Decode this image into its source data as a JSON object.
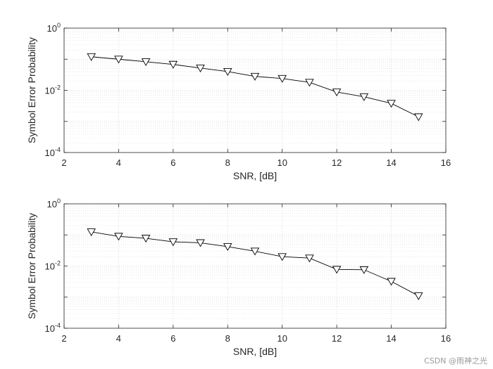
{
  "chart_data": [
    {
      "type": "line",
      "title": "",
      "xlabel": "SNR, [dB]",
      "ylabel": "Symbol Error Probability",
      "xlim": [
        2,
        16
      ],
      "ylim": [
        0.0001,
        1
      ],
      "yscale": "log",
      "grid": true,
      "marker": "triangle-down",
      "xticks": [
        "2",
        "4",
        "6",
        "8",
        "10",
        "12",
        "14",
        "16"
      ],
      "yticks": [
        {
          "base": "10",
          "exp": "0"
        },
        {
          "base": "10",
          "exp": "-2"
        },
        {
          "base": "10",
          "exp": "-4"
        }
      ],
      "x": [
        3,
        4,
        5,
        6,
        7,
        8,
        9,
        10,
        11,
        12,
        13,
        14,
        15
      ],
      "y": [
        0.12,
        0.1,
        0.083,
        0.068,
        0.052,
        0.04,
        0.028,
        0.024,
        0.018,
        0.0088,
        0.0062,
        0.0038,
        0.0014
      ]
    },
    {
      "type": "line",
      "title": "",
      "xlabel": "SNR, [dB]",
      "ylabel": "Symbol Error Probability",
      "xlim": [
        2,
        16
      ],
      "ylim": [
        0.0001,
        1
      ],
      "yscale": "log",
      "grid": true,
      "marker": "triangle-down",
      "xticks": [
        "2",
        "4",
        "6",
        "8",
        "10",
        "12",
        "14",
        "16"
      ],
      "yticks": [
        {
          "base": "10",
          "exp": "0"
        },
        {
          "base": "10",
          "exp": "-2"
        },
        {
          "base": "10",
          "exp": "-4"
        }
      ],
      "x": [
        3,
        4,
        5,
        6,
        7,
        8,
        9,
        10,
        11,
        12,
        13,
        14,
        15
      ],
      "y": [
        0.125,
        0.09,
        0.078,
        0.06,
        0.056,
        0.042,
        0.03,
        0.02,
        0.018,
        0.0078,
        0.0076,
        0.0032,
        0.0011
      ]
    }
  ],
  "watermark": "CSDN @雨神之光"
}
